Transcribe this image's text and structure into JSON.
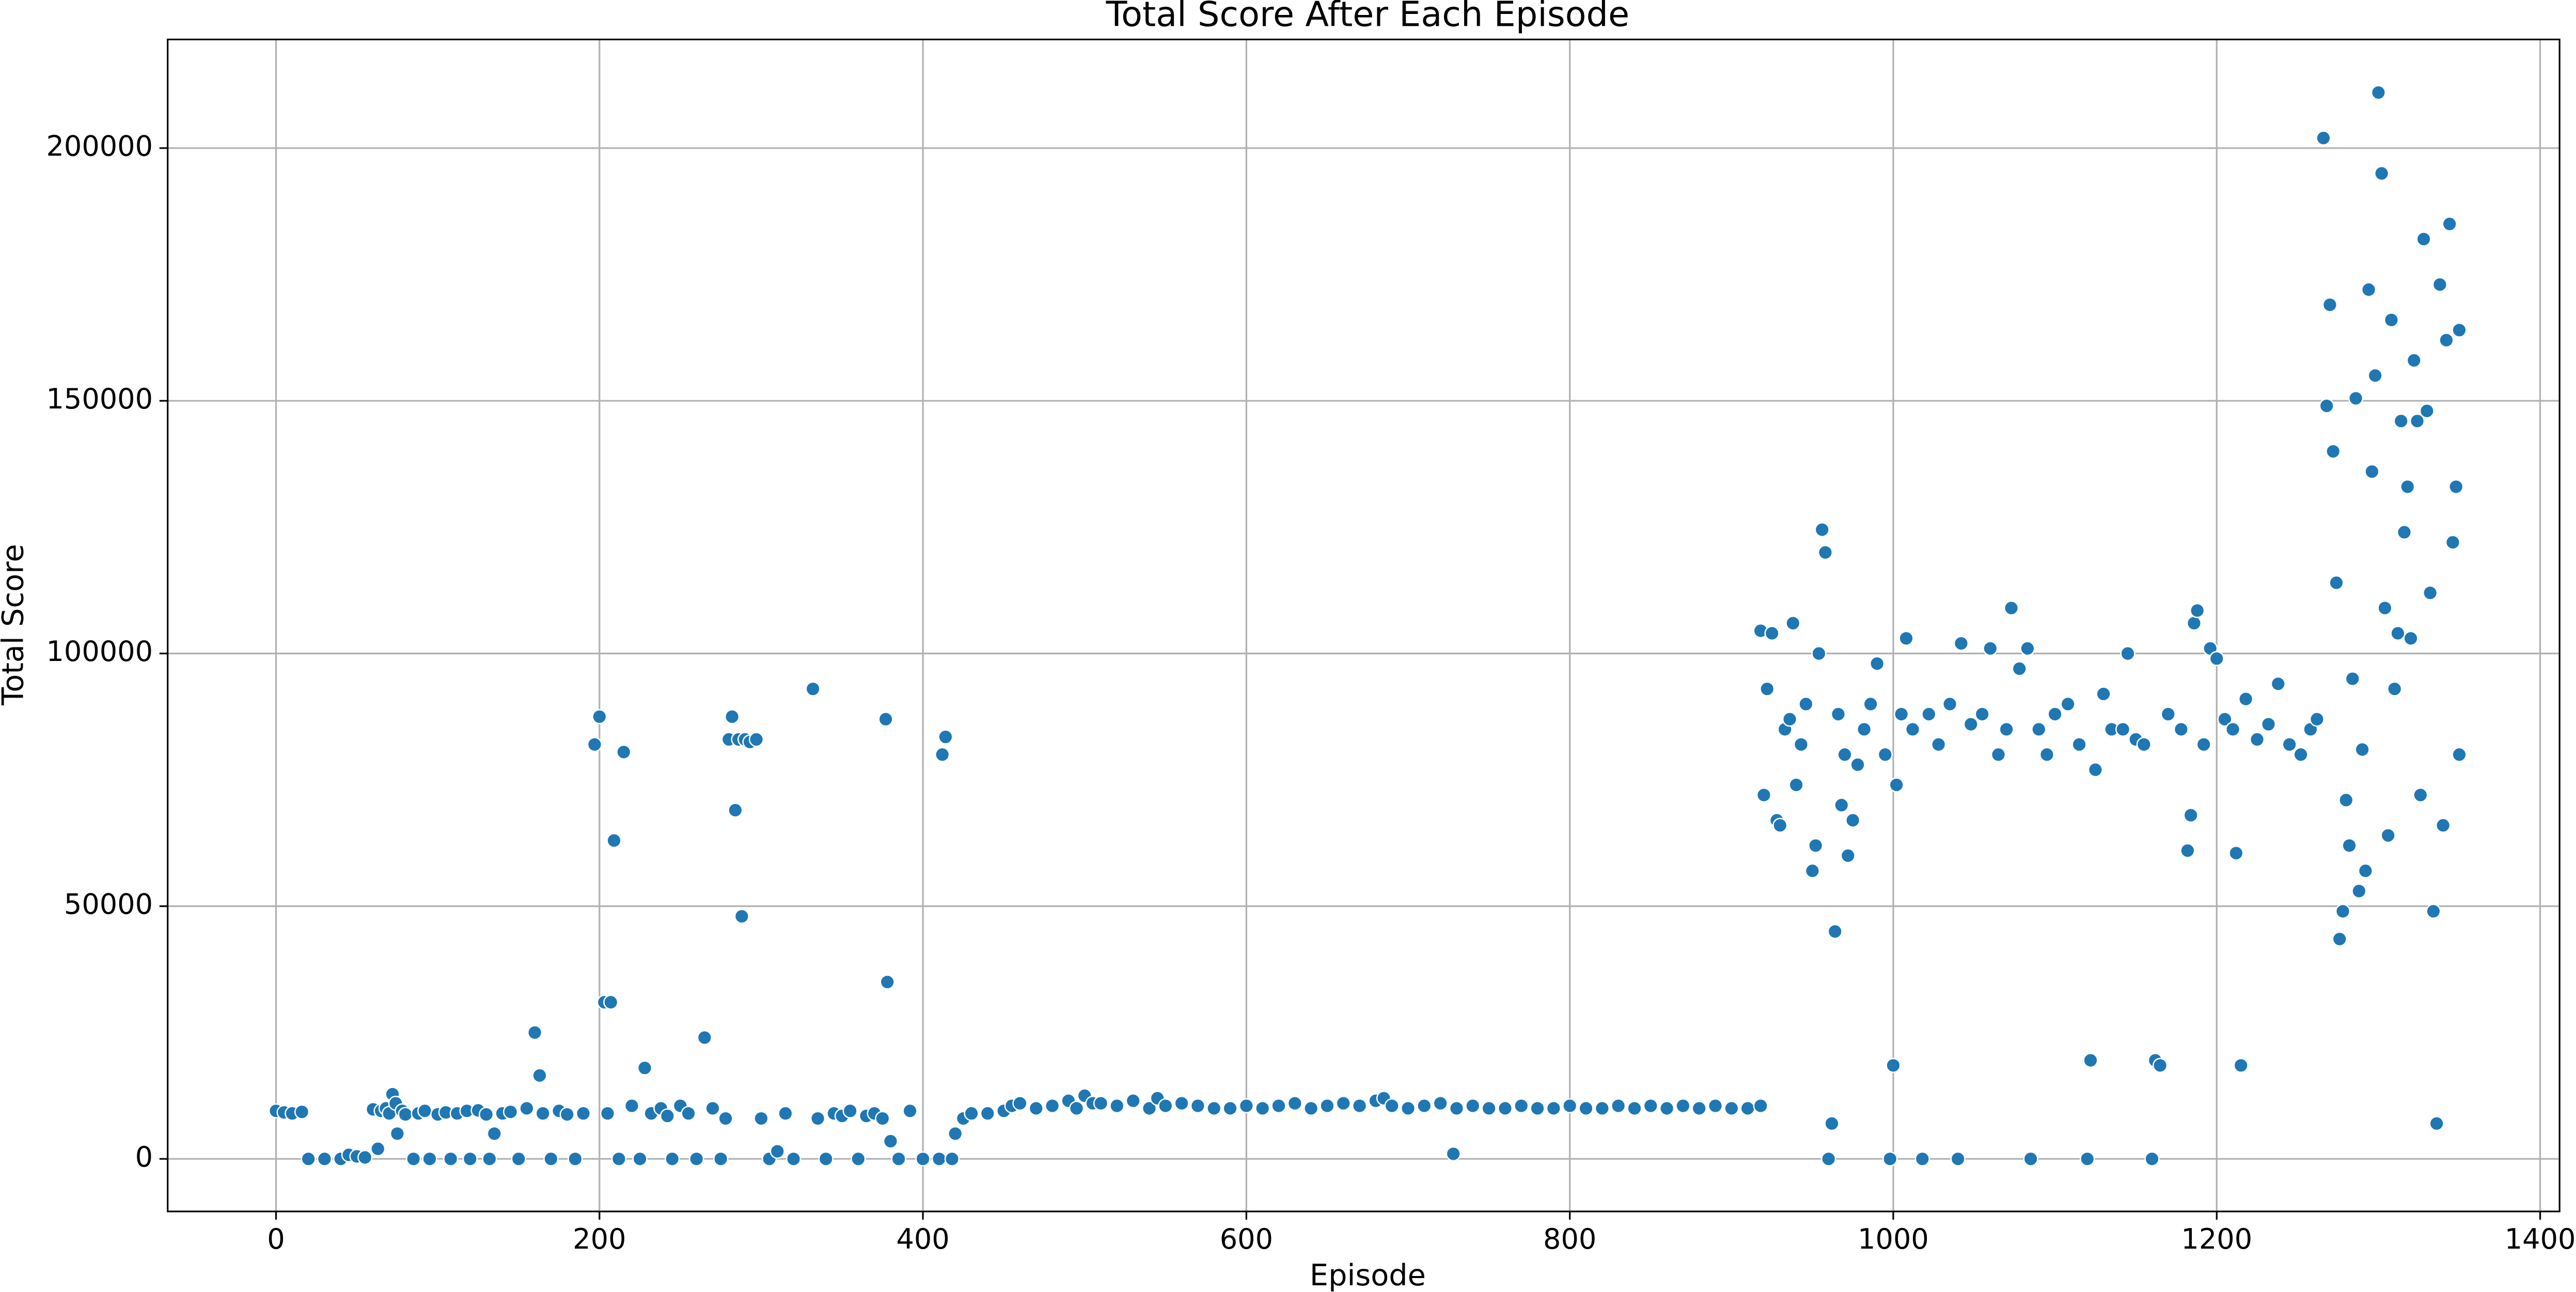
{
  "chart_data": {
    "type": "scatter",
    "title": "Total Score After Each Episode",
    "x_label": "Episode",
    "y_label": "Total Score",
    "color": "#1f77b4",
    "grid": true,
    "xlim": [
      -67,
      1412
    ],
    "ylim": [
      -10400,
      221500
    ],
    "xticks": [
      0,
      200,
      400,
      600,
      800,
      1000,
      1200,
      1400
    ],
    "yticks": [
      0,
      50000,
      100000,
      150000,
      200000
    ],
    "x": [
      0,
      5,
      10,
      16,
      20,
      30,
      40,
      45,
      50,
      55,
      60,
      63,
      65,
      68,
      70,
      72,
      74,
      75,
      78,
      80,
      85,
      88,
      92,
      95,
      100,
      105,
      108,
      112,
      118,
      120,
      125,
      130,
      132,
      135,
      140,
      145,
      150,
      155,
      160,
      163,
      165,
      170,
      175,
      180,
      185,
      190,
      197,
      200,
      203,
      205,
      207,
      209,
      212,
      215,
      220,
      225,
      228,
      232,
      238,
      242,
      245,
      250,
      255,
      260,
      265,
      270,
      275,
      278,
      280,
      282,
      284,
      286,
      288,
      290,
      293,
      297,
      300,
      305,
      310,
      315,
      320,
      332,
      335,
      340,
      345,
      350,
      355,
      360,
      365,
      370,
      375,
      377,
      378,
      380,
      385,
      392,
      400,
      410,
      412,
      414,
      418,
      420,
      425,
      430,
      440,
      450,
      455,
      460,
      470,
      480,
      490,
      495,
      500,
      505,
      510,
      520,
      530,
      540,
      545,
      550,
      560,
      570,
      580,
      590,
      600,
      610,
      620,
      630,
      640,
      650,
      660,
      670,
      680,
      685,
      690,
      700,
      710,
      720,
      728,
      730,
      740,
      750,
      760,
      770,
      780,
      790,
      800,
      810,
      820,
      830,
      840,
      850,
      860,
      870,
      880,
      890,
      900,
      910,
      918,
      918,
      920,
      922,
      925,
      928,
      930,
      933,
      936,
      938,
      940,
      943,
      946,
      950,
      952,
      954,
      956,
      958,
      960,
      962,
      964,
      966,
      968,
      970,
      972,
      975,
      978,
      982,
      986,
      990,
      995,
      998,
      1000,
      1002,
      1005,
      1008,
      1012,
      1018,
      1022,
      1028,
      1035,
      1040,
      1042,
      1048,
      1055,
      1060,
      1065,
      1070,
      1073,
      1078,
      1083,
      1085,
      1090,
      1095,
      1100,
      1108,
      1115,
      1120,
      1122,
      1125,
      1130,
      1135,
      1142,
      1145,
      1150,
      1155,
      1160,
      1162,
      1165,
      1170,
      1178,
      1182,
      1184,
      1186,
      1188,
      1192,
      1196,
      1200,
      1205,
      1210,
      1212,
      1215,
      1218,
      1225,
      1232,
      1238,
      1245,
      1252,
      1258,
      1262,
      1266,
      1268,
      1270,
      1272,
      1274,
      1276,
      1278,
      1280,
      1282,
      1284,
      1286,
      1288,
      1290,
      1292,
      1294,
      1296,
      1298,
      1300,
      1302,
      1304,
      1306,
      1308,
      1310,
      1312,
      1314,
      1316,
      1318,
      1320,
      1322,
      1324,
      1326,
      1328,
      1330,
      1332,
      1334,
      1336,
      1338,
      1340,
      1342,
      1344,
      1346,
      1348,
      1350,
      1350
    ],
    "values": [
      9500,
      9200,
      9000,
      9300,
      0,
      0,
      0,
      800,
      500,
      300,
      9800,
      2000,
      9500,
      10000,
      9000,
      12800,
      11000,
      5000,
      9500,
      8800,
      0,
      9000,
      9500,
      0,
      8800,
      9200,
      0,
      9000,
      9500,
      0,
      9600,
      8800,
      0,
      5000,
      9000,
      9300,
      0,
      10000,
      25000,
      16500,
      9000,
      0,
      9500,
      8800,
      0,
      9000,
      82000,
      87500,
      31000,
      9000,
      31000,
      63000,
      0,
      80500,
      10500,
      0,
      18000,
      9000,
      10000,
      8500,
      0,
      10500,
      9000,
      0,
      24000,
      10000,
      0,
      8000,
      83000,
      87500,
      69000,
      83000,
      48000,
      83000,
      82500,
      83000,
      8000,
      0,
      1500,
      9000,
      0,
      93000,
      8000,
      0,
      9000,
      8500,
      9500,
      0,
      8500,
      9000,
      8000,
      87000,
      35000,
      3500,
      0,
      9500,
      0,
      0,
      80000,
      83500,
      0,
      5000,
      8000,
      9000,
      9000,
      9500,
      10500,
      11000,
      10000,
      10500,
      11500,
      10000,
      12500,
      11000,
      11000,
      10500,
      11500,
      10000,
      12000,
      10500,
      11000,
      10500,
      10000,
      10000,
      10500,
      10000,
      10500,
      11000,
      10000,
      10500,
      11000,
      10500,
      11500,
      12000,
      10500,
      10000,
      10500,
      11000,
      1000,
      10000,
      10500,
      10000,
      10000,
      10500,
      10000,
      10000,
      10500,
      10000,
      10000,
      10500,
      10000,
      10500,
      10000,
      10500,
      10000,
      10500,
      10000,
      10000,
      10500,
      104500,
      72000,
      93000,
      104000,
      67000,
      66000,
      85000,
      87000,
      106000,
      74000,
      82000,
      90000,
      57000,
      62000,
      100000,
      124500,
      120000,
      0,
      7000,
      45000,
      88000,
      70000,
      80000,
      60000,
      67000,
      78000,
      85000,
      90000,
      98000,
      80000,
      0,
      18500,
      74000,
      88000,
      103000,
      85000,
      0,
      88000,
      82000,
      90000,
      0,
      102000,
      86000,
      88000,
      101000,
      80000,
      85000,
      109000,
      97000,
      101000,
      0,
      85000,
      80000,
      88000,
      90000,
      82000,
      0,
      19500,
      77000,
      92000,
      85000,
      85000,
      100000,
      83000,
      82000,
      0,
      19500,
      18500,
      88000,
      85000,
      61000,
      68000,
      106000,
      108500,
      82000,
      101000,
      99000,
      87000,
      85000,
      60500,
      18500,
      91000,
      83000,
      86000,
      94000,
      82000,
      80000,
      85000,
      87000,
      202000,
      149000,
      169000,
      140000,
      114000,
      43500,
      49000,
      71000,
      62000,
      95000,
      150500,
      53000,
      81000,
      57000,
      172000,
      136000,
      155000,
      211000,
      195000,
      109000,
      64000,
      166000,
      93000,
      104000,
      146000,
      124000,
      133000,
      103000,
      158000,
      146000,
      72000,
      182000,
      148000,
      112000,
      49000,
      7000,
      173000,
      66000,
      162000,
      185000,
      122000,
      133000,
      164000,
      80000
    ]
  }
}
